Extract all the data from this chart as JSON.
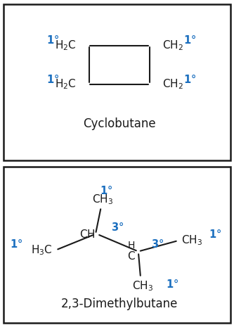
{
  "blue_color": "#1B6FBF",
  "black_color": "#1A1A1A",
  "bg_color": "#FFFFFF",
  "panel1_title": "Cyclobutane",
  "panel2_title": "2,3-Dimethylbutane",
  "title_fontsize": 12,
  "chem_fontsize": 11,
  "label_fontsize": 10.5
}
